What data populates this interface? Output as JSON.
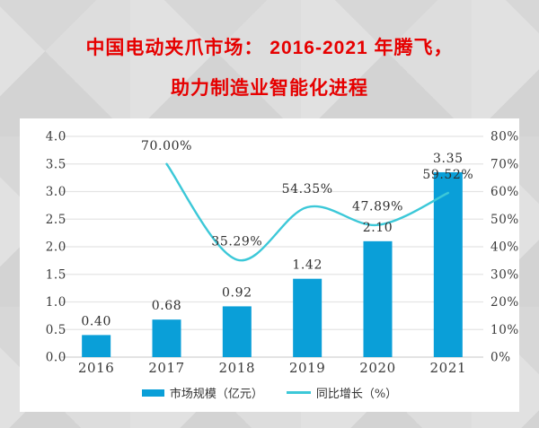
{
  "title": {
    "line1": "中国电动夹爪市场： 2016-2021 年腾飞，",
    "line2": "助力制造业智能化进程"
  },
  "chart_data": {
    "type": "bar",
    "subtype": "bar-with-line-overlay",
    "categories": [
      "2016",
      "2017",
      "2018",
      "2019",
      "2020",
      "2021"
    ],
    "series": [
      {
        "name": "市场规模（亿元）",
        "type": "bar",
        "axis": "left",
        "values": [
          0.4,
          0.68,
          0.92,
          1.42,
          2.1,
          3.35
        ],
        "labels": [
          "0.40",
          "0.68",
          "0.92",
          "1.42",
          "2.10",
          "3.35"
        ],
        "color": "#0a9fd8"
      },
      {
        "name": "同比增长（%）",
        "type": "line",
        "axis": "right",
        "values": [
          null,
          70.0,
          35.29,
          54.35,
          47.89,
          59.52
        ],
        "labels": [
          "",
          "70.00%",
          "35.29%",
          "54.35%",
          "47.89%",
          "59.52%"
        ],
        "color": "#3cc8d8"
      }
    ],
    "left_axis": {
      "min": 0,
      "max": 4,
      "step": 0.5,
      "ticks": [
        "0.0",
        "0.5",
        "1.0",
        "1.5",
        "2.0",
        "2.5",
        "3.0",
        "3.5",
        "4.0"
      ]
    },
    "right_axis": {
      "min": 0,
      "max": 80,
      "step": 10,
      "ticks": [
        "0%",
        "10%",
        "20%",
        "30%",
        "40%",
        "50%",
        "60%",
        "70%",
        "80%"
      ]
    },
    "grid": true,
    "line_smooth": true,
    "legend_position": "bottom"
  },
  "colors": {
    "title": "#e60000",
    "bar": "#0a9fd8",
    "line": "#3cc8d8",
    "grid": "#e4e4e4",
    "baseline": "#d2d2d2",
    "axis_text": "#3a3a3a",
    "label_text": "#2f2f2f",
    "card_bg": "#ffffff",
    "page_bg": "#d7d7d7"
  }
}
